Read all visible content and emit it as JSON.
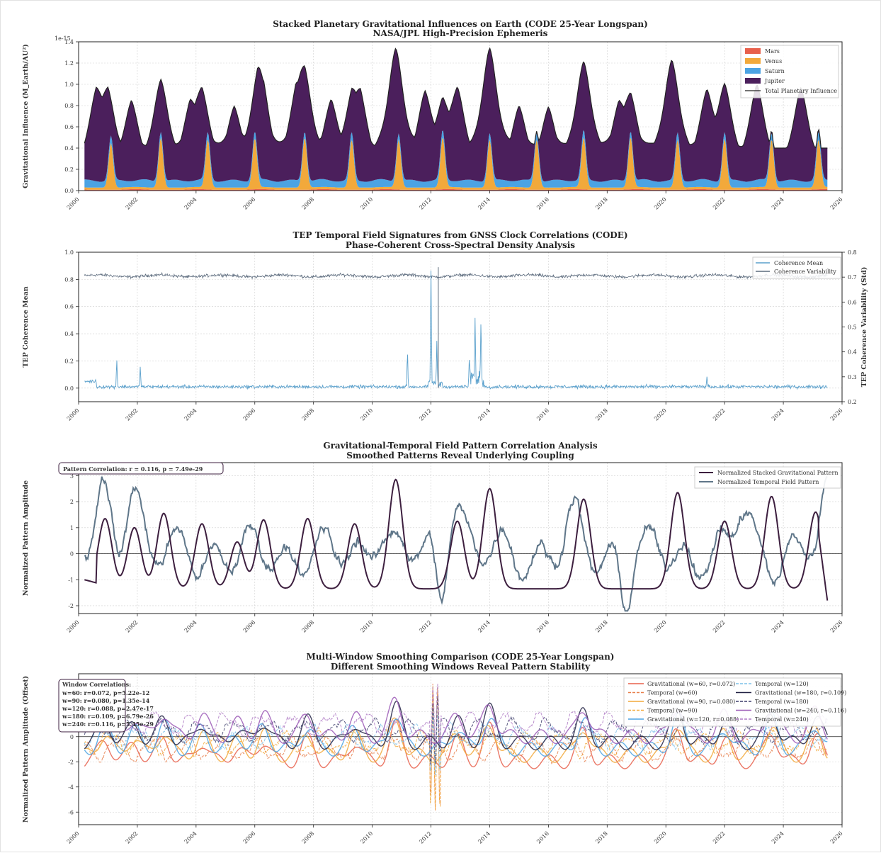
{
  "chart_data": [
    {
      "type": "area",
      "title": "Stacked Planetary Gravitational Influences on Earth (CODE 25-Year Longspan)",
      "subtitle": "NASA/JPL High-Precision Ephemeris",
      "ylabel": "Gravitational Influence (M_Earth/AU²)",
      "y_scale_label": "1e-15",
      "xlim": [
        2000,
        2026
      ],
      "ylim": [
        0,
        1.4
      ],
      "x_ticks": [
        "2000",
        "2002",
        "2004",
        "2006",
        "2008",
        "2010",
        "2012",
        "2014",
        "2016",
        "2018",
        "2020",
        "2022",
        "2024",
        "2026"
      ],
      "y_ticks": [
        "0.0",
        "0.2",
        "0.4",
        "0.6",
        "0.8",
        "1.0",
        "1.2",
        "1.4"
      ],
      "legend_position": "top-right",
      "grid": true,
      "colors": {
        "mars": "#e8604c",
        "venus": "#f2a93b",
        "saturn": "#4ba3e3",
        "jupiter": "#4b1f5c",
        "total": "#222222"
      },
      "series": [
        {
          "name": "Mars",
          "description_values": "small peaks ~0.02 near Mars oppositions"
        },
        {
          "name": "Venus",
          "peaks": [
            {
              "x": 2001.1,
              "y": 0.47
            },
            {
              "x": 2002.8,
              "y": 0.52
            },
            {
              "x": 2004.4,
              "y": 0.5
            },
            {
              "x": 2006.0,
              "y": 0.51
            },
            {
              "x": 2007.7,
              "y": 0.52
            },
            {
              "x": 2009.3,
              "y": 0.5
            },
            {
              "x": 2010.9,
              "y": 0.5
            },
            {
              "x": 2012.4,
              "y": 0.52
            },
            {
              "x": 2014.0,
              "y": 0.5
            },
            {
              "x": 2015.6,
              "y": 0.5
            },
            {
              "x": 2017.2,
              "y": 0.52
            },
            {
              "x": 2018.8,
              "y": 0.52
            },
            {
              "x": 2020.4,
              "y": 0.5
            },
            {
              "x": 2022.0,
              "y": 0.51
            },
            {
              "x": 2023.6,
              "y": 0.5
            },
            {
              "x": 2025.2,
              "y": 0.5
            }
          ]
        },
        {
          "name": "Saturn",
          "baseline": 0.08
        },
        {
          "name": "Jupiter",
          "baseline_range": [
            0.38,
            0.45
          ],
          "amplitude": 0.4
        },
        {
          "name": "Total Planetary Influence",
          "peaks": [
            {
              "x": 2000.6,
              "y": 0.97
            },
            {
              "x": 2001.0,
              "y": 0.97
            },
            {
              "x": 2001.8,
              "y": 0.88
            },
            {
              "x": 2002.8,
              "y": 1.07
            },
            {
              "x": 2003.8,
              "y": 0.84
            },
            {
              "x": 2004.2,
              "y": 0.96
            },
            {
              "x": 2005.3,
              "y": 0.8
            },
            {
              "x": 2006.1,
              "y": 1.03
            },
            {
              "x": 2006.3,
              "y": 0.85
            },
            {
              "x": 2007.4,
              "y": 0.9
            },
            {
              "x": 2007.7,
              "y": 1.1
            },
            {
              "x": 2008.6,
              "y": 0.87
            },
            {
              "x": 2009.3,
              "y": 0.9
            },
            {
              "x": 2009.6,
              "y": 0.9
            },
            {
              "x": 2010.8,
              "y": 1.37
            },
            {
              "x": 2011.8,
              "y": 0.97
            },
            {
              "x": 2012.4,
              "y": 0.9
            },
            {
              "x": 2012.9,
              "y": 1.0
            },
            {
              "x": 2014.0,
              "y": 1.37
            },
            {
              "x": 2015.0,
              "y": 0.82
            },
            {
              "x": 2016.0,
              "y": 0.8
            },
            {
              "x": 2017.2,
              "y": 1.22
            },
            {
              "x": 2018.4,
              "y": 0.82
            },
            {
              "x": 2018.8,
              "y": 0.9
            },
            {
              "x": 2020.2,
              "y": 1.24
            },
            {
              "x": 2021.4,
              "y": 0.97
            },
            {
              "x": 2022.0,
              "y": 1.03
            },
            {
              "x": 2023.1,
              "y": 1.03
            },
            {
              "x": 2024.6,
              "y": 1.0
            }
          ]
        }
      ]
    },
    {
      "type": "line",
      "title": "TEP Temporal Field Signatures from GNSS Clock Correlations (CODE)",
      "subtitle": "Phase-Coherent Cross-Spectral Density Analysis",
      "ylabel": "TEP Coherence Mean",
      "ylabel_right": "TEP Coherence Variability (Std)",
      "xlim": [
        2000,
        2026
      ],
      "ylim": [
        -0.1,
        1.0
      ],
      "ylim_right": [
        0.2,
        0.8
      ],
      "x_ticks": [
        "2000",
        "2002",
        "2004",
        "2006",
        "2008",
        "2010",
        "2012",
        "2014",
        "2016",
        "2018",
        "2020",
        "2022",
        "2024",
        "2026"
      ],
      "y_ticks": [
        "0.0",
        "0.2",
        "0.4",
        "0.6",
        "0.8",
        "1.0"
      ],
      "y_ticks_right": [
        "0.2",
        "0.3",
        "0.4",
        "0.5",
        "0.6",
        "0.7",
        "0.8"
      ],
      "legend_position": "top-right",
      "grid": true,
      "colors": {
        "mean": "#5aa0cc",
        "variability": "#5c6b7d"
      },
      "series": [
        {
          "name": "Coherence Mean",
          "baseline": 0.01,
          "spikes": [
            {
              "x": 2001.3,
              "y": 0.21
            },
            {
              "x": 2002.1,
              "y": 0.16
            },
            {
              "x": 2011.2,
              "y": 0.29
            },
            {
              "x": 2012.0,
              "y": 0.85
            },
            {
              "x": 2012.2,
              "y": 0.32
            },
            {
              "x": 2013.3,
              "y": 0.15
            },
            {
              "x": 2013.5,
              "y": 0.47
            },
            {
              "x": 2013.7,
              "y": 0.45
            },
            {
              "x": 2021.4,
              "y": 0.08
            }
          ]
        },
        {
          "name": "Coherence Variability",
          "baseline": 0.705,
          "spikes": [
            {
              "x": 2011.8,
              "y": 0.73
            },
            {
              "x": 2012.0,
              "y": 0.71
            },
            {
              "x": 2012.3,
              "y": 0.74
            }
          ]
        }
      ]
    },
    {
      "type": "line",
      "title": "Gravitational-Temporal Field Pattern Correlation Analysis",
      "subtitle": "Smoothed Patterns Reveal Underlying Coupling",
      "ylabel": "Normalized Pattern Amplitude",
      "annotation": "Pattern Correlation: r = 0.116, p = 7.49e-29",
      "xlim": [
        2000,
        2026
      ],
      "ylim": [
        -2.3,
        3.5
      ],
      "x_ticks": [
        "2000",
        "2002",
        "2004",
        "2006",
        "2008",
        "2010",
        "2012",
        "2014",
        "2016",
        "2018",
        "2020",
        "2022",
        "2024",
        "2026"
      ],
      "y_ticks": [
        "-2",
        "-1",
        "0",
        "1",
        "2",
        "3"
      ],
      "legend_position": "top-right",
      "grid": true,
      "colors": {
        "grav": "#3d1f3f",
        "temp": "#5f7689"
      },
      "series": [
        {
          "name": "Normalized Stacked Gravitational Pattern",
          "peaks": [
            {
              "x": 2000.9,
              "y": 1.35
            },
            {
              "x": 2001.9,
              "y": 1.0
            },
            {
              "x": 2002.9,
              "y": 1.55
            },
            {
              "x": 2004.2,
              "y": 1.15
            },
            {
              "x": 2005.4,
              "y": 0.45
            },
            {
              "x": 2006.3,
              "y": 1.3
            },
            {
              "x": 2007.8,
              "y": 1.35
            },
            {
              "x": 2009.4,
              "y": 1.15
            },
            {
              "x": 2010.8,
              "y": 2.85
            },
            {
              "x": 2012.9,
              "y": 1.25
            },
            {
              "x": 2014.0,
              "y": 2.5
            },
            {
              "x": 2017.2,
              "y": 2.1
            },
            {
              "x": 2020.4,
              "y": 2.35
            },
            {
              "x": 2022.0,
              "y": 1.25
            },
            {
              "x": 2023.6,
              "y": 2.2
            },
            {
              "x": 2025.1,
              "y": 1.6
            }
          ],
          "troughs_value": -1.35,
          "end": {
            "x": 2025.5,
            "y": -1.8
          }
        },
        {
          "name": "Normalized Temporal Field Pattern",
          "peaks": [
            {
              "x": 2000.8,
              "y": 2.6
            },
            {
              "x": 2001.8,
              "y": 3.4
            },
            {
              "x": 2010.2,
              "y": 1.6
            },
            {
              "x": 2012.8,
              "y": 2.8
            },
            {
              "x": 2016.8,
              "y": 1.65
            },
            {
              "x": 2022.6,
              "y": 2.25
            },
            {
              "x": 2025.5,
              "y": 2.8
            }
          ],
          "troughs": [
            {
              "x": 2012.3,
              "y": -2.15
            },
            {
              "x": 2018.6,
              "y": -1.95
            }
          ]
        }
      ]
    },
    {
      "type": "line",
      "title": "Multi-Window Smoothing Comparison (CODE 25-Year Longspan)",
      "subtitle": "Different Smoothing Windows Reveal Pattern Stability",
      "ylabel": "Normalized Pattern Amplitude (Offset)",
      "xlim": [
        2000,
        2026
      ],
      "ylim": [
        -7,
        5
      ],
      "x_ticks": [
        "2000",
        "2002",
        "2004",
        "2006",
        "2008",
        "2010",
        "2012",
        "2014",
        "2016",
        "2018",
        "2020",
        "2022",
        "2024",
        "2026"
      ],
      "y_ticks": [
        "-6",
        "-4",
        "-2",
        "0",
        "2",
        "4"
      ],
      "legend_position": "top-right",
      "grid": true,
      "annotation_title": "Window Correlations:",
      "annotation_lines": [
        "w=60: r=0.072, p=5.22e-12",
        "w=90: r=0.080, p=1.35e-14",
        "w=120: r=0.088, p=2.47e-17",
        "w=180: r=0.109, p=6.79e-26",
        "w=240: r=0.116, p=5.45e-29"
      ],
      "series": [
        {
          "name": "Gravitational (w=60, r=0.072)",
          "color": "#e8604c",
          "style": "solid",
          "offset": -1.0
        },
        {
          "name": "Temporal (w=60)",
          "color": "#e8804c",
          "style": "dashed",
          "offset": -1.0
        },
        {
          "name": "Gravitational (w=90, r=0.080)",
          "color": "#f2a93b",
          "style": "solid",
          "offset": -0.5
        },
        {
          "name": "Temporal (w=90)",
          "color": "#f2a93b",
          "style": "dashed",
          "offset": -0.5
        },
        {
          "name": "Gravitational (w=120, r=0.088)",
          "color": "#4ba3e3",
          "style": "solid",
          "offset": 0.0
        },
        {
          "name": "Temporal (w=120)",
          "color": "#7cc0ea",
          "style": "dashed",
          "offset": 0.0
        },
        {
          "name": "Gravitational (w=180, r=0.109)",
          "color": "#222244",
          "style": "solid",
          "offset": 0.5
        },
        {
          "name": "Temporal (w=180)",
          "color": "#3d3d6b",
          "style": "dashed",
          "offset": 0.5
        },
        {
          "name": "Gravitational (w=240, r=0.116)",
          "color": "#9b59b6",
          "style": "solid",
          "offset": 1.0
        },
        {
          "name": "Temporal (w=240)",
          "color": "#b07cc6",
          "style": "dashed",
          "offset": 1.0
        }
      ]
    }
  ]
}
